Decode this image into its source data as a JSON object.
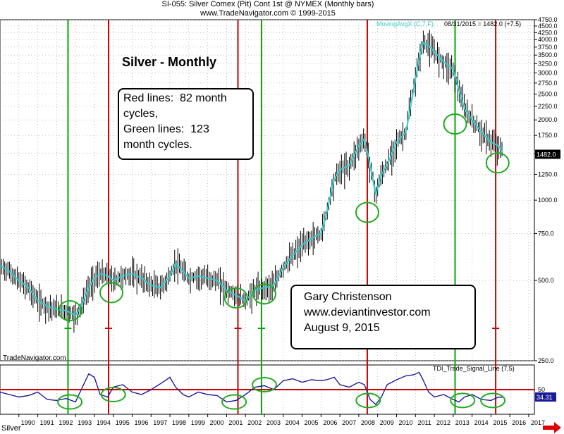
{
  "header": {
    "line1": "SI-055:  Silver Comex (Pit) Cont 1st @ NYMEX  (Monthly bars)",
    "line2": "www.TradeNavigator.com © 1999-2015"
  },
  "chart_data": {
    "type": "line",
    "title": "Silver - Monthly",
    "price_panel": {
      "scale": "log",
      "ylim": [
        250,
        4750
      ],
      "y_ticks": [
        250.0,
        500.0,
        750.0,
        1000.0,
        1250.0,
        1500.0,
        1750.0,
        2000.0,
        2250.0,
        2500.0,
        2750.0,
        3000.0,
        3250.0,
        3500.0,
        3750.0,
        4000.0,
        4250.0,
        4500.0,
        4750.0
      ],
      "y_tick_labels": [
        "250.0",
        "500.0",
        "750.0",
        "1000.0",
        "1250.0",
        "1500.0",
        "1750.0",
        "2000.0",
        "2250.0",
        "2500.0",
        "2750.0",
        "3000.0",
        "3250.0",
        "3500.0",
        "3750.0",
        "4000.0",
        "4250.0",
        "4500.0",
        "4750.0"
      ],
      "last_value_label": "1482.0",
      "moving_average_label": "MovingAvgX (C,7,F)",
      "status_text": "08/31/2015 = 1482.0 (+7.5)",
      "moving_average_color": "#33cccc",
      "bar_color": "#000000",
      "series": [
        {
          "name": "MovingAvgX (C,7,F)",
          "x": [
            1989.0,
            1989.5,
            1990.0,
            1990.5,
            1991.0,
            1991.5,
            1992.0,
            1992.5,
            1993.0,
            1993.3,
            1993.7,
            1994.0,
            1994.3,
            1994.7,
            1995.0,
            1995.5,
            1996.0,
            1996.5,
            1997.0,
            1997.5,
            1998.0,
            1998.3,
            1998.7,
            1999.0,
            1999.5,
            2000.0,
            2000.5,
            2001.0,
            2001.5,
            2002.0,
            2002.5,
            2003.0,
            2003.5,
            2004.0,
            2004.5,
            2005.0,
            2005.5,
            2006.0,
            2006.3,
            2006.7,
            2007.0,
            2007.5,
            2008.0,
            2008.3,
            2008.6,
            2008.9,
            2009.2,
            2009.5,
            2010.0,
            2010.5,
            2010.9,
            2011.2,
            2011.4,
            2011.7,
            2012.0,
            2012.5,
            2013.0,
            2013.3,
            2013.6,
            2014.0,
            2014.5,
            2015.0,
            2015.4,
            2015.6
          ],
          "y": [
            570,
            540,
            500,
            470,
            420,
            400,
            390,
            385,
            370,
            400,
            470,
            510,
            530,
            520,
            500,
            520,
            530,
            510,
            480,
            470,
            520,
            580,
            540,
            510,
            520,
            510,
            500,
            460,
            440,
            420,
            460,
            470,
            480,
            560,
            620,
            680,
            720,
            750,
            900,
            1200,
            1300,
            1350,
            1600,
            1700,
            1350,
            1050,
            1250,
            1350,
            1650,
            1800,
            2600,
            3400,
            3900,
            3800,
            3600,
            3300,
            3100,
            2600,
            2200,
            2000,
            1800,
            1650,
            1600,
            1520
          ]
        }
      ]
    },
    "cycle_lines": {
      "red_label": "Red lines:  82 month cycles,",
      "green_label": "Green lines:  123 month cycles.",
      "red_color": "#cc0000",
      "green_color": "#00aa00",
      "red_x": [
        1994.75,
        2001.6,
        2008.45,
        2015.25
      ],
      "green_x": [
        1992.6,
        2002.85,
        2013.1
      ]
    },
    "indicator_panel": {
      "name": "TDI_Trade_Signal_Line (7,5)",
      "ylim": [
        0,
        100
      ],
      "signal_level": 50,
      "signal_label": "50",
      "last_value": "34.31",
      "series": [
        {
          "name": "TDI_Trade_Signal_Line (7,5)",
          "x": [
            1989.0,
            1989.5,
            1990.0,
            1990.5,
            1991.0,
            1991.5,
            1992.0,
            1992.5,
            1993.0,
            1993.3,
            1993.7,
            1994.0,
            1994.3,
            1994.7,
            1995.0,
            1995.5,
            1996.0,
            1996.5,
            1997.0,
            1997.5,
            1998.0,
            1998.3,
            1998.7,
            1999.0,
            1999.5,
            2000.0,
            2000.5,
            2001.0,
            2001.5,
            2002.0,
            2002.5,
            2003.0,
            2003.5,
            2004.0,
            2004.5,
            2005.0,
            2005.5,
            2006.0,
            2006.3,
            2006.7,
            2007.0,
            2007.5,
            2008.0,
            2008.3,
            2008.6,
            2008.9,
            2009.2,
            2009.5,
            2010.0,
            2010.5,
            2010.9,
            2011.2,
            2011.4,
            2011.7,
            2012.0,
            2012.5,
            2013.0,
            2013.3,
            2013.6,
            2014.0,
            2014.5,
            2015.0,
            2015.4,
            2015.6
          ],
          "y": [
            45,
            40,
            35,
            38,
            45,
            30,
            28,
            32,
            25,
            50,
            82,
            75,
            40,
            35,
            55,
            60,
            45,
            40,
            50,
            62,
            75,
            55,
            40,
            35,
            45,
            40,
            38,
            25,
            28,
            40,
            55,
            58,
            50,
            68,
            72,
            65,
            70,
            68,
            70,
            75,
            60,
            55,
            65,
            60,
            30,
            20,
            35,
            60,
            70,
            78,
            80,
            85,
            70,
            45,
            35,
            40,
            30,
            25,
            35,
            40,
            30,
            28,
            35,
            34
          ]
        }
      ]
    },
    "x_axis": {
      "tick_labels": [
        "1990",
        "1991",
        "1992",
        "1993",
        "1994",
        "1995",
        "1996",
        "1997",
        "1998",
        "1999",
        "2000",
        "2001",
        "2002",
        "2003",
        "2004",
        "2005",
        "2006",
        "2007",
        "2008",
        "2009",
        "2010",
        "2011",
        "2012",
        "2013",
        "2014",
        "2015",
        "2016",
        "2017"
      ],
      "xlim": [
        1989.0,
        2017.3
      ]
    },
    "highlight_circle_color": "#22aa22",
    "highlights": [
      {
        "panel": "price",
        "x": 1992.7,
        "y": 385
      },
      {
        "panel": "price",
        "x": 1994.9,
        "y": 450
      },
      {
        "panel": "price",
        "x": 2001.5,
        "y": 430
      },
      {
        "panel": "price",
        "x": 2003.0,
        "y": 445
      },
      {
        "panel": "price",
        "x": 2008.45,
        "y": 900
      },
      {
        "panel": "price",
        "x": 2013.1,
        "y": 1930
      },
      {
        "panel": "price",
        "x": 2015.35,
        "y": 1380
      },
      {
        "panel": "indicator",
        "x": 1992.7,
        "y": 25
      },
      {
        "panel": "indicator",
        "x": 1995.0,
        "y": 40
      },
      {
        "panel": "indicator",
        "x": 2001.4,
        "y": 25
      },
      {
        "panel": "indicator",
        "x": 2003.0,
        "y": 60
      },
      {
        "panel": "indicator",
        "x": 2008.5,
        "y": 28
      },
      {
        "panel": "indicator",
        "x": 2013.5,
        "y": 28
      },
      {
        "panel": "indicator",
        "x": 2015.1,
        "y": 28
      }
    ]
  },
  "annotations": {
    "chart_title": "Silver - Monthly",
    "cycles_box": [
      "Red lines:  82 month",
      "cycles,",
      "Green lines:  123",
      "month cycles."
    ],
    "author_box": [
      "Gary Christenson",
      "www.deviantinvestor.com",
      "August 9, 2015"
    ]
  },
  "footer": {
    "watermark": "TradeNavigator.com",
    "symbol": "Silver"
  }
}
